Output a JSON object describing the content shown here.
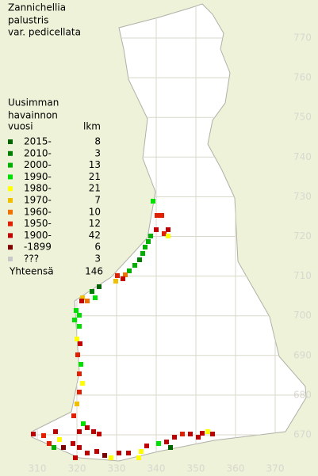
{
  "title": [
    "Zannichellia",
    "palustris",
    "var. pedicellata"
  ],
  "legend": {
    "header": [
      "Uusimman",
      "havainnon"
    ],
    "col_year": "vuosi",
    "col_count": "lkm",
    "rows": [
      {
        "label": "2015-",
        "count": 8,
        "color": "#006400"
      },
      {
        "label": "2010-",
        "count": 3,
        "color": "#008000"
      },
      {
        "label": "2000-",
        "count": 13,
        "color": "#00b000"
      },
      {
        "label": "1990-",
        "count": 21,
        "color": "#00e000"
      },
      {
        "label": "1980-",
        "count": 21,
        "color": "#ffff00"
      },
      {
        "label": "1970-",
        "count": 7,
        "color": "#f0c000"
      },
      {
        "label": "1960-",
        "count": 10,
        "color": "#f07000"
      },
      {
        "label": "1950-",
        "count": 12,
        "color": "#e02000"
      },
      {
        "label": "1900-",
        "count": 42,
        "color": "#c00000"
      },
      {
        "label": "-1899",
        "count": 6,
        "color": "#800000"
      },
      {
        "label": "???",
        "count": 3,
        "color": "#c8c8c8"
      }
    ],
    "total_label": "Yhteensä",
    "total": 146
  },
  "grid": {
    "x_labels": [
      310,
      320,
      330,
      340,
      350,
      360,
      370
    ],
    "y_labels": [
      770,
      760,
      750,
      740,
      730,
      720,
      710,
      700,
      690,
      680,
      670
    ]
  }
}
